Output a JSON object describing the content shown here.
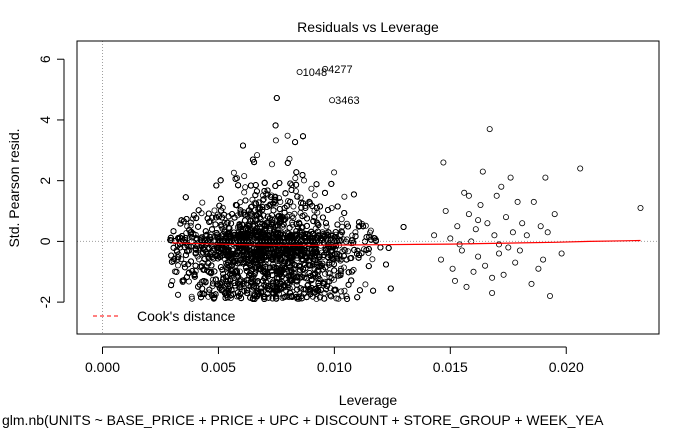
{
  "chart_data": {
    "type": "scatter",
    "title": "Residuals vs Leverage",
    "xlabel": "Leverage",
    "ylabel": "Std. Pearson resid.",
    "subtitle": "glm.nb(UNITS ~ BASE_PRICE + PRICE + UPC + DISCOUNT + STORE_GROUP + WEEK_YEA",
    "xlim": [
      -0.0011,
      0.024
    ],
    "ylim": [
      -3.05,
      6.6
    ],
    "x_ticks": [
      0.0,
      0.005,
      0.01,
      0.015,
      0.02
    ],
    "x_tick_labels": [
      "0.000",
      "0.005",
      "0.010",
      "0.015",
      "0.020"
    ],
    "y_ticks": [
      -2,
      0,
      2,
      4,
      6
    ],
    "y_tick_labels": [
      "-2",
      "0",
      "2",
      "4",
      "6"
    ],
    "reference_lines": {
      "x": 0,
      "y": 0
    },
    "legend": {
      "position": "bottom-left",
      "entries": [
        {
          "label": "Cook's distance",
          "color": "#ff0000",
          "style": "dashed"
        }
      ]
    },
    "labeled_points": [
      {
        "label": "1048",
        "x": 0.0085,
        "y": 5.58
      },
      {
        "label": "4277",
        "x": 0.0096,
        "y": 5.68
      },
      {
        "label": "3463",
        "x": 0.0099,
        "y": 4.65
      }
    ],
    "smoother": {
      "color": "#ff0000",
      "x": [
        0.003,
        0.0045,
        0.006,
        0.0075,
        0.009,
        0.0105,
        0.012,
        0.0135,
        0.015,
        0.0165,
        0.018,
        0.0195,
        0.021,
        0.0225,
        0.0232
      ],
      "y": [
        -0.05,
        -0.08,
        -0.11,
        -0.13,
        -0.13,
        -0.12,
        -0.11,
        -0.1,
        -0.09,
        -0.07,
        -0.05,
        -0.03,
        0.0,
        0.02,
        0.03
      ]
    },
    "point_cloud": {
      "n_core": 5200,
      "core_x_range": [
        0.0029,
        0.014
      ],
      "y_floor": -1.9,
      "sparse_points": [
        [
          0.0143,
          0.2
        ],
        [
          0.0146,
          -0.6
        ],
        [
          0.0148,
          1.0
        ],
        [
          0.015,
          0.1
        ],
        [
          0.0151,
          -0.9
        ],
        [
          0.0152,
          -1.3
        ],
        [
          0.0153,
          0.5
        ],
        [
          0.0155,
          -0.3
        ],
        [
          0.0156,
          1.6
        ],
        [
          0.0157,
          -1.5
        ],
        [
          0.0158,
          0.9
        ],
        [
          0.0159,
          0.0
        ],
        [
          0.016,
          -1.0
        ],
        [
          0.0161,
          0.4
        ],
        [
          0.0162,
          -0.5
        ],
        [
          0.0163,
          1.2
        ],
        [
          0.0164,
          2.3
        ],
        [
          0.0165,
          -0.8
        ],
        [
          0.0166,
          0.6
        ],
        [
          0.0167,
          3.7
        ],
        [
          0.0168,
          -1.2
        ],
        [
          0.0169,
          0.2
        ],
        [
          0.017,
          1.5
        ],
        [
          0.0171,
          -0.4
        ],
        [
          0.0172,
          1.8
        ],
        [
          0.0173,
          -1.1
        ],
        [
          0.0174,
          0.8
        ],
        [
          0.0175,
          -0.2
        ],
        [
          0.0176,
          2.1
        ],
        [
          0.0177,
          0.3
        ],
        [
          0.0178,
          -0.7
        ],
        [
          0.0179,
          1.3
        ],
        [
          0.018,
          -0.3
        ],
        [
          0.0181,
          0.6
        ],
        [
          0.0183,
          0.2
        ],
        [
          0.0185,
          -1.4
        ],
        [
          0.0186,
          1.3
        ],
        [
          0.0188,
          -0.9
        ],
        [
          0.0189,
          0.5
        ],
        [
          0.019,
          -0.6
        ],
        [
          0.0191,
          2.1
        ],
        [
          0.0192,
          0.3
        ],
        [
          0.0193,
          -1.8
        ],
        [
          0.0195,
          0.9
        ],
        [
          0.0198,
          -0.4
        ],
        [
          0.0206,
          2.4
        ],
        [
          0.0232,
          1.1
        ],
        [
          0.0171,
          -0.1
        ],
        [
          0.0162,
          0.7
        ],
        [
          0.0154,
          -0.1
        ],
        [
          0.0147,
          2.6
        ],
        [
          0.0158,
          1.5
        ],
        [
          0.0168,
          -1.7
        ]
      ]
    }
  }
}
